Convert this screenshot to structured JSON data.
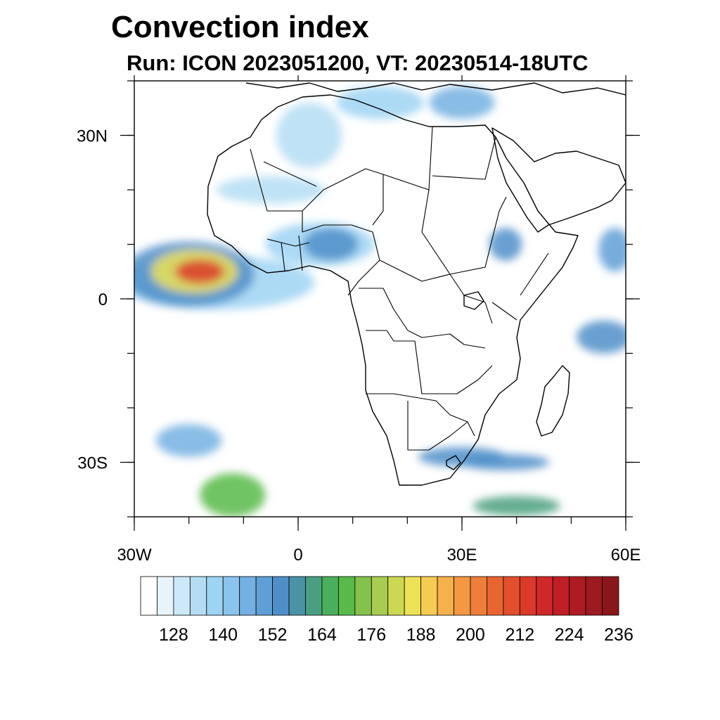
{
  "title": "Convection index",
  "subtitle": "Run: ICON 2023051200,  VT: 20230514-18UTC",
  "axes": {
    "lon_ticks": [
      {
        "value": -30,
        "label": "30W"
      },
      {
        "value": 0,
        "label": "0"
      },
      {
        "value": 30,
        "label": "30E"
      },
      {
        "value": 60,
        "label": "60E"
      }
    ],
    "lat_ticks": [
      {
        "value": 30,
        "label": "30N"
      },
      {
        "value": 0,
        "label": "0"
      },
      {
        "value": -30,
        "label": "30S"
      }
    ],
    "lon_range": [
      -30,
      60
    ],
    "lat_range": [
      -40,
      40
    ]
  },
  "colorbar": {
    "colors": [
      "#ffffff",
      "#e8f4fb",
      "#cde8f7",
      "#b4ddf5",
      "#9dd3f3",
      "#8ac4ec",
      "#74b0e2",
      "#5f9fd6",
      "#4f8fc9",
      "#4a93a6",
      "#4aa07e",
      "#4aaf5d",
      "#58ba49",
      "#84c24c",
      "#a8cc50",
      "#ccd752",
      "#ede255",
      "#f7cb52",
      "#f7b14b",
      "#f49843",
      "#ee7e3a",
      "#e86531",
      "#e24f2c",
      "#db3a2a",
      "#d02828",
      "#c01e26",
      "#ae1b24",
      "#9c1a20",
      "#8a161c"
    ],
    "labels": [
      "128",
      "140",
      "152",
      "164",
      "176",
      "188",
      "200",
      "212",
      "224",
      "236"
    ],
    "label_box_index": [
      2,
      5,
      8,
      11,
      14,
      17,
      20,
      23,
      26,
      29
    ]
  },
  "field_blobs": [
    {
      "lon": -18,
      "lat": 5,
      "rx": 4.5,
      "ry": 2.2,
      "value": 210
    },
    {
      "lon": -19,
      "lat": 5,
      "rx": 8,
      "ry": 4,
      "value": 180
    },
    {
      "lon": -20,
      "lat": 4.5,
      "rx": 12,
      "ry": 6,
      "value": 150
    },
    {
      "lon": -15,
      "lat": 3,
      "rx": 18,
      "ry": 5,
      "value": 132
    },
    {
      "lon": 6,
      "lat": 10,
      "rx": 5,
      "ry": 3,
      "value": 150
    },
    {
      "lon": 4,
      "lat": 10,
      "rx": 10,
      "ry": 4,
      "value": 132
    },
    {
      "lon": 38,
      "lat": 10,
      "rx": 3,
      "ry": 3,
      "value": 150
    },
    {
      "lon": 30,
      "lat": 36,
      "rx": 6,
      "ry": 3,
      "value": 140
    },
    {
      "lon": 15,
      "lat": 36,
      "rx": 8,
      "ry": 3,
      "value": 132
    },
    {
      "lon": 56,
      "lat": -7,
      "rx": 5,
      "ry": 3,
      "value": 150
    },
    {
      "lon": 58,
      "lat": 9,
      "rx": 3,
      "ry": 4,
      "value": 145
    },
    {
      "lon": 30,
      "lat": -29,
      "rx": 8,
      "ry": 1.8,
      "value": 148
    },
    {
      "lon": 38,
      "lat": -30,
      "rx": 8,
      "ry": 1.5,
      "value": 150
    },
    {
      "lon": 40,
      "lat": -38,
      "rx": 8,
      "ry": 1.8,
      "value": 158
    },
    {
      "lon": -12,
      "lat": -36,
      "rx": 6,
      "ry": 4,
      "value": 165
    },
    {
      "lon": -20,
      "lat": -26,
      "rx": 6,
      "ry": 3,
      "value": 140
    },
    {
      "lon": -5,
      "lat": 20,
      "rx": 10,
      "ry": 2.5,
      "value": 128
    },
    {
      "lon": 2,
      "lat": 30,
      "rx": 6,
      "ry": 6,
      "value": 128
    }
  ]
}
